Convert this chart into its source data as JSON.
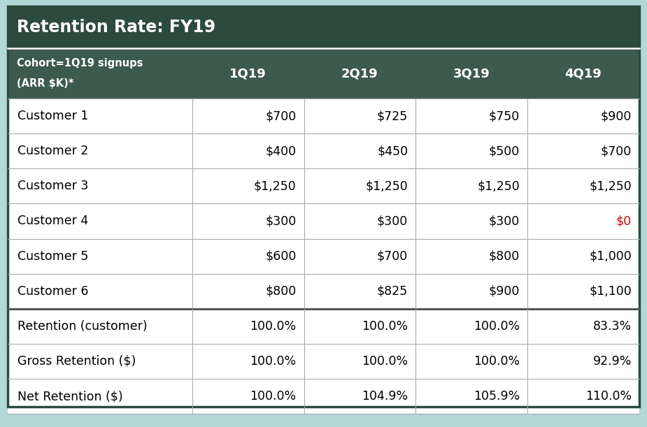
{
  "title": "Retention Rate: FY19",
  "header_bg": "#2d4a3e",
  "header_text_color": "#ffffff",
  "subheader_bg": "#3d5a4e",
  "subheader_text_color": "#ffffff",
  "row_bg_white": "#ffffff",
  "footer_bg": "#b2d8d8",
  "border_color": "#aaaaaa",
  "quarters": [
    "1Q19",
    "2Q19",
    "3Q19",
    "4Q19"
  ],
  "customers": [
    "Customer 1",
    "Customer 2",
    "Customer 3",
    "Customer 4",
    "Customer 5",
    "Customer 6"
  ],
  "customer_data": [
    [
      "$700",
      "$725",
      "$750",
      "$900"
    ],
    [
      "$400",
      "$450",
      "$500",
      "$700"
    ],
    [
      "$1,250",
      "$1,250",
      "$1,250",
      "$1,250"
    ],
    [
      "$300",
      "$300",
      "$300",
      "$0"
    ],
    [
      "$600",
      "$700",
      "$800",
      "$1,000"
    ],
    [
      "$800",
      "$825",
      "$900",
      "$1,100"
    ]
  ],
  "special_red_cell": [
    3,
    3
  ],
  "red_color": "#cc0000",
  "metrics": [
    "Retention (customer)",
    "Gross Retention ($)",
    "Net Retention ($)"
  ],
  "metrics_data": [
    [
      "100.0%",
      "100.0%",
      "100.0%",
      "83.3%"
    ],
    [
      "100.0%",
      "100.0%",
      "100.0%",
      "92.9%"
    ],
    [
      "100.0%",
      "104.9%",
      "105.9%",
      "110.0%"
    ]
  ],
  "dark_line_color": "#2d4a3e",
  "col0_label_line1": "Cohort=1Q19 signups",
  "col0_label_line2": "(ARR $K)*"
}
